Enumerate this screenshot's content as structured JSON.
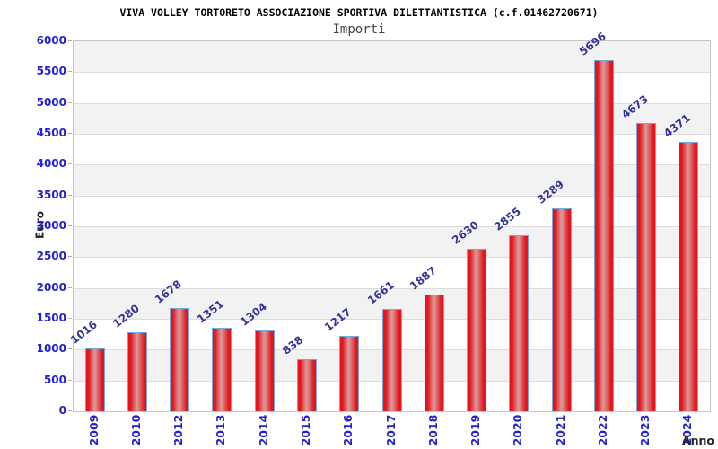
{
  "chart_data": {
    "type": "bar",
    "title": "VIVA VOLLEY TORTORETO ASSOCIAZIONE SPORTIVA DILETTANTISTICA (c.f.01462720671)",
    "subtitle": "Importi",
    "xlabel": "Anno",
    "ylabel": "Euro",
    "categories": [
      "2009",
      "2010",
      "2012",
      "2013",
      "2014",
      "2015",
      "2016",
      "2017",
      "2018",
      "2019",
      "2020",
      "2021",
      "2022",
      "2023",
      "2024"
    ],
    "values": [
      1016,
      1280,
      1678,
      1351,
      1304,
      838,
      1217,
      1661,
      1887,
      2630,
      2855,
      3289,
      5696,
      4673,
      4371
    ],
    "ylim": [
      0,
      6000
    ],
    "ytick_step": 500,
    "grid": true,
    "band_stripes": true,
    "legend_position": "none",
    "colors": {
      "bar_fill_edge": "#e3161d",
      "bar_fill_center": "#da9292",
      "bar_border": "#74a9e0",
      "value_label_text": "#33339b",
      "tick_label_text": "#2323cd",
      "tick_mark": "#a9a9cf",
      "band_gray": "#f2f2f2",
      "band_white": "#ffffff",
      "gridline": "#dcdcdc",
      "plot_border": "#c6c6c6"
    }
  }
}
